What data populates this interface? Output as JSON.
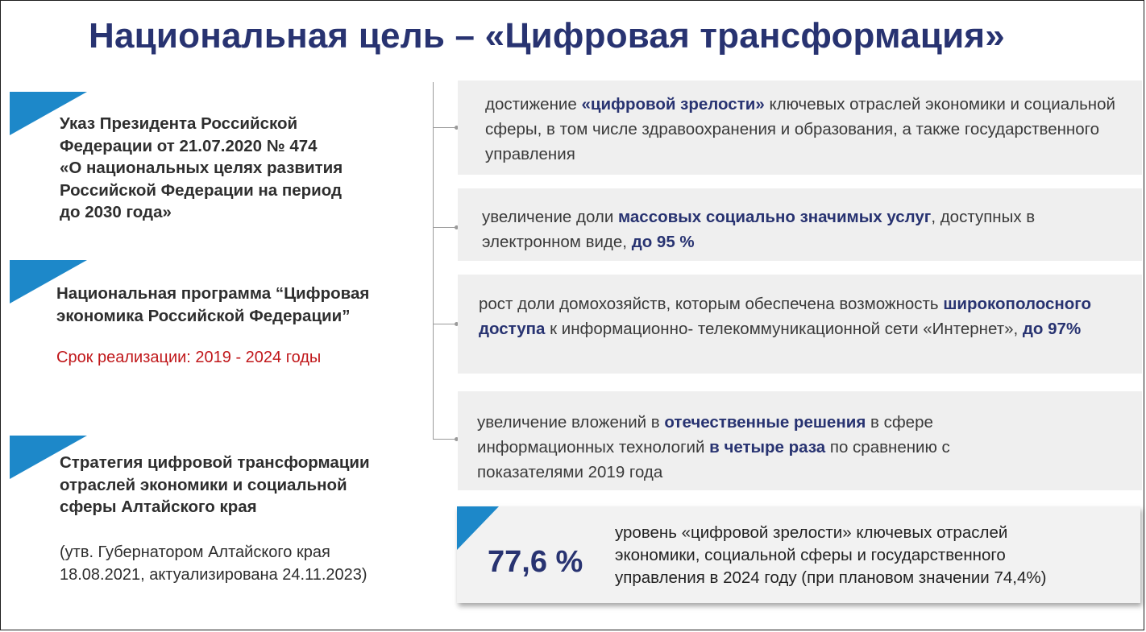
{
  "title": "Национальная цель – «Цифровая трансформация»",
  "left": {
    "decree": {
      "lines": [
        "Указ Президента Российской",
        "Федерации от 21.07.2020 № 474",
        "«О национальных целях развития",
        "Российской Федерации на период",
        "до 2030 года»"
      ]
    },
    "program": {
      "lines": [
        "Национальная программа “Цифровая",
        "экономика Российской Федерации”"
      ],
      "term": "Срок реализации: 2019 - 2024 годы"
    },
    "strategy": {
      "lines": [
        "Стратегия цифровой трансформации",
        "отраслей экономики и социальной",
        "сферы Алтайского края"
      ],
      "note_lines": [
        "(утв. Губернатором Алтайского края",
        "18.08.2021, актуализирована 24.11.2023)"
      ]
    }
  },
  "goals": [
    {
      "p1": "достижение ",
      "b1": "«цифровой зрелости»",
      "p2": " ключевых отраслей экономики и социальной сферы, в том числе здравоохранения и образования, а также государственного управления",
      "b2": "",
      "p3": ""
    },
    {
      "p1": "увеличение доли ",
      "b1": "массовых социально значимых услуг",
      "p2": ", доступных в электронном виде, ",
      "b2": "до 95 %",
      "p3": ""
    },
    {
      "p1": "рост доли домохозяйств, которым обеспечена возможность ",
      "b1": "широкополосного доступа",
      "p2": " к информационно- телекоммуникационной сети «Интернет», ",
      "b2": "до 97%",
      "p3": ""
    },
    {
      "p1": "увеличение вложений в ",
      "b1": "отечественные решения",
      "p2": " в сфере информационных технологий ",
      "b2": "в четыре раза",
      "p3": " по сравнению с показателями 2019 года"
    }
  ],
  "result": {
    "value": "77,6 %",
    "text_lines": [
      "уровень «цифровой зрелости» ключевых отраслей",
      "экономики, социальной сферы и государственного",
      "управления в 2024 году (при плановом значении 74,4%)"
    ]
  },
  "colors": {
    "title": "#283371",
    "accent_triangle": "#1d88c9",
    "term_red": "#c0171a",
    "card_bg": "#efefef"
  }
}
